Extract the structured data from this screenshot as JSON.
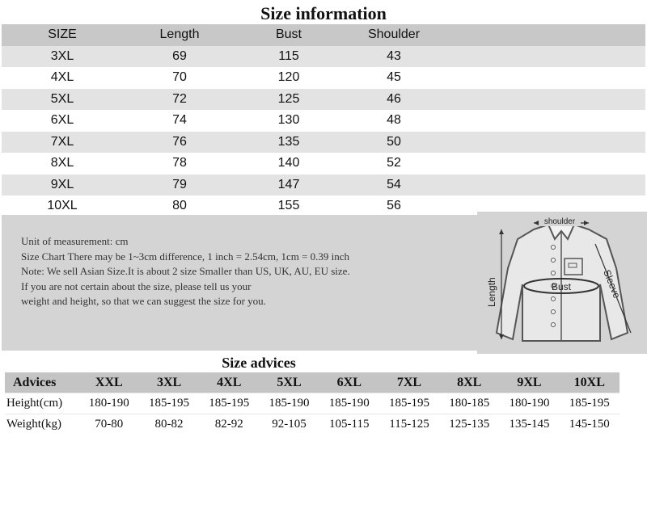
{
  "size_information": {
    "title": "Size information",
    "headers": [
      "SIZE",
      "Length",
      "Bust",
      "Shoulder"
    ],
    "rows": [
      [
        "3XL",
        "69",
        "115",
        "43"
      ],
      [
        "4XL",
        "70",
        "120",
        "45"
      ],
      [
        "5XL",
        "72",
        "125",
        "46"
      ],
      [
        "6XL",
        "74",
        "130",
        "48"
      ],
      [
        "7XL",
        "76",
        "135",
        "50"
      ],
      [
        "8XL",
        "78",
        "140",
        "52"
      ],
      [
        "9XL",
        "79",
        "147",
        "54"
      ],
      [
        "10XL",
        "80",
        "155",
        "56"
      ]
    ]
  },
  "notes": [
    "Unit of measurement: cm",
    "Size Chart There may be 1~3cm difference, 1 inch = 2.54cm, 1cm = 0.39 inch",
    "Note: We sell Asian Size.It is about 2 size Smaller than US, UK, AU, EU size.",
    "If you are not    certain about the size,  please tell us your",
    "weight and height, so that we can suggest the size for you."
  ],
  "diagram": {
    "labels": {
      "shoulder": "shoulder",
      "length": "Length",
      "bust": "Bust",
      "sleeve": "Sleeve"
    }
  },
  "size_advices": {
    "title": "Size advices",
    "headers": [
      "Advices",
      "XXL",
      "3XL",
      "4XL",
      "5XL",
      "6XL",
      "7XL",
      "8XL",
      "9XL",
      "10XL"
    ],
    "rows": [
      [
        "Height(cm)",
        "180-190",
        "185-195",
        "185-195",
        "185-190",
        "185-190",
        "185-195",
        "180-185",
        "180-190",
        "185-195"
      ],
      [
        "Weight(kg)",
        "70-80",
        "80-82",
        "82-92",
        "92-105",
        "105-115",
        "115-125",
        "125-135",
        "135-145",
        "145-150"
      ]
    ]
  }
}
